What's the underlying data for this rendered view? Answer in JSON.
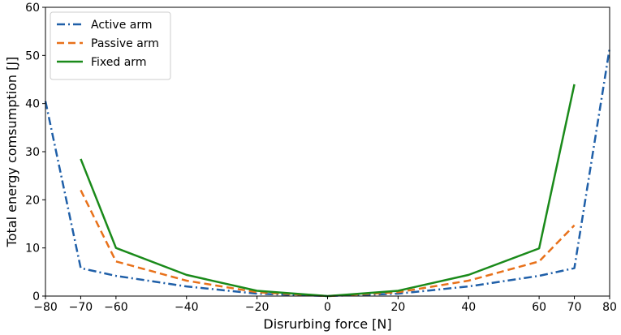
{
  "chart_data": {
    "type": "line",
    "xlabel": "Disrurbing force [N]",
    "ylabel": "Total energy comsumption [J]",
    "xlim": [
      -80,
      80
    ],
    "ylim": [
      0,
      60
    ],
    "xticks": [
      -80,
      -70,
      -60,
      -40,
      -20,
      0,
      20,
      40,
      60,
      70,
      80
    ],
    "xtick_labels": [
      "−80",
      "−70",
      "−60",
      "−40",
      "−20",
      "0",
      "20",
      "40",
      "60",
      "70",
      "80"
    ],
    "yticks": [
      0,
      10,
      20,
      30,
      40,
      50,
      60
    ],
    "ytick_labels": [
      "0",
      "10",
      "20",
      "30",
      "40",
      "50",
      "60"
    ],
    "grid": false,
    "legend_position": "top-left",
    "series": [
      {
        "name": "Active arm",
        "color": "#1f5fa8",
        "dash": "dash-dot",
        "x": [
          -80,
          -70,
          -60,
          -40,
          -20,
          0,
          20,
          40,
          60,
          70,
          80
        ],
        "y": [
          40.5,
          5.8,
          4.2,
          2.0,
          0.5,
          0.0,
          0.5,
          2.0,
          4.2,
          5.8,
          51.5
        ]
      },
      {
        "name": "Passive arm",
        "color": "#e8711a",
        "dash": "dashed",
        "x": [
          -70,
          -60,
          -40,
          -20,
          0,
          20,
          40,
          60,
          70
        ],
        "y": [
          22.0,
          7.2,
          3.2,
          0.8,
          0.0,
          0.8,
          3.2,
          7.2,
          14.7
        ]
      },
      {
        "name": "Fixed arm",
        "color": "#1a8a1a",
        "dash": "solid",
        "x": [
          -70,
          -60,
          -40,
          -20,
          0,
          20,
          40,
          60,
          70
        ],
        "y": [
          28.5,
          10.0,
          4.4,
          1.1,
          0.0,
          1.1,
          4.4,
          9.9,
          44.0
        ]
      }
    ]
  }
}
